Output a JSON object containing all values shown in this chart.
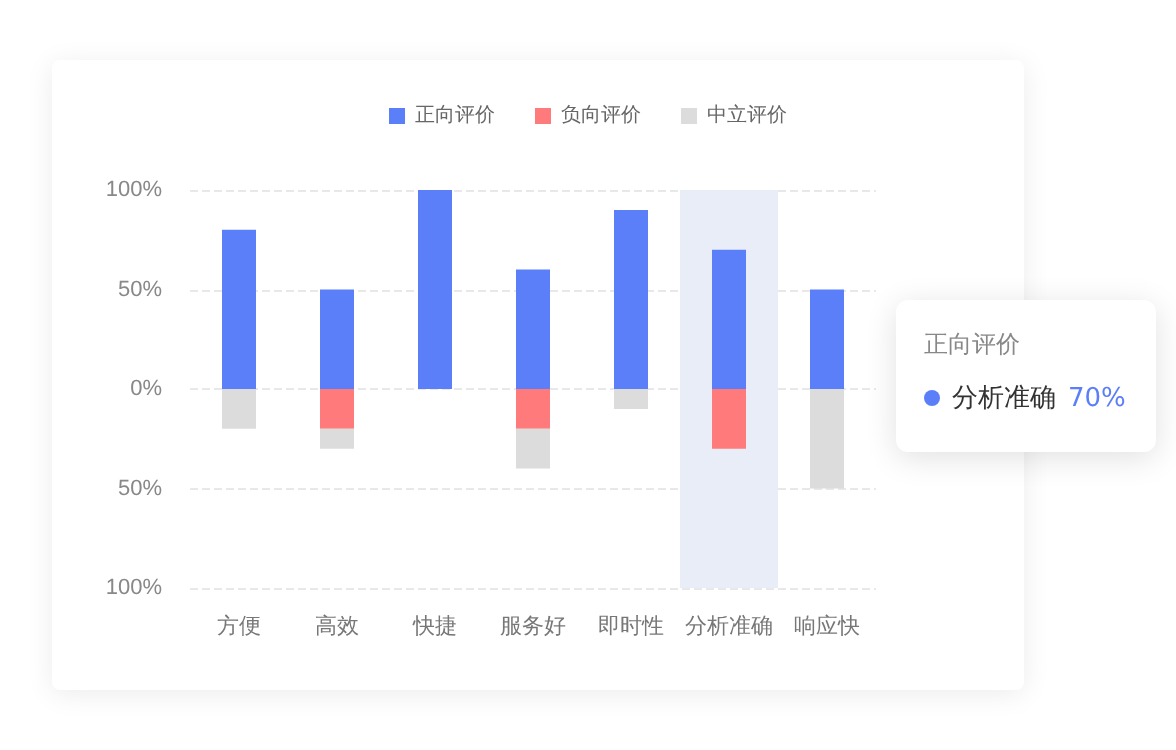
{
  "chart_data": {
    "type": "bar",
    "stacked": true,
    "categories": [
      "方便",
      "高效",
      "快捷",
      "服务好",
      "即时性",
      "分析准确",
      "响应快"
    ],
    "series": [
      {
        "name": "正向评价",
        "color": "#5b7ff8",
        "values": [
          80,
          50,
          100,
          60,
          90,
          70,
          50
        ]
      },
      {
        "name": "负向评价",
        "color": "#ff7a7a",
        "values": [
          null,
          -20,
          null,
          -20,
          null,
          -30,
          null
        ]
      },
      {
        "name": "中立评价",
        "color": "#dcdcdc",
        "values": [
          -20,
          -10,
          null,
          -20,
          -10,
          null,
          -50
        ]
      }
    ],
    "ylim": [
      -100,
      100
    ],
    "yticks": [
      {
        "value": -100,
        "label": "100%"
      },
      {
        "value": -50,
        "label": "50%"
      },
      {
        "value": 0,
        "label": "0%"
      },
      {
        "value": 50,
        "label": "50%"
      },
      {
        "value": 100,
        "label": "100%"
      }
    ],
    "grid": "y",
    "legend": "top",
    "bands": [
      {
        "axis": "x",
        "from": "分析准确",
        "to": "分析准确",
        "color": "#e9edf7"
      }
    ],
    "annotations": [
      "正向评价",
      "分析准确 70%"
    ]
  }
}
